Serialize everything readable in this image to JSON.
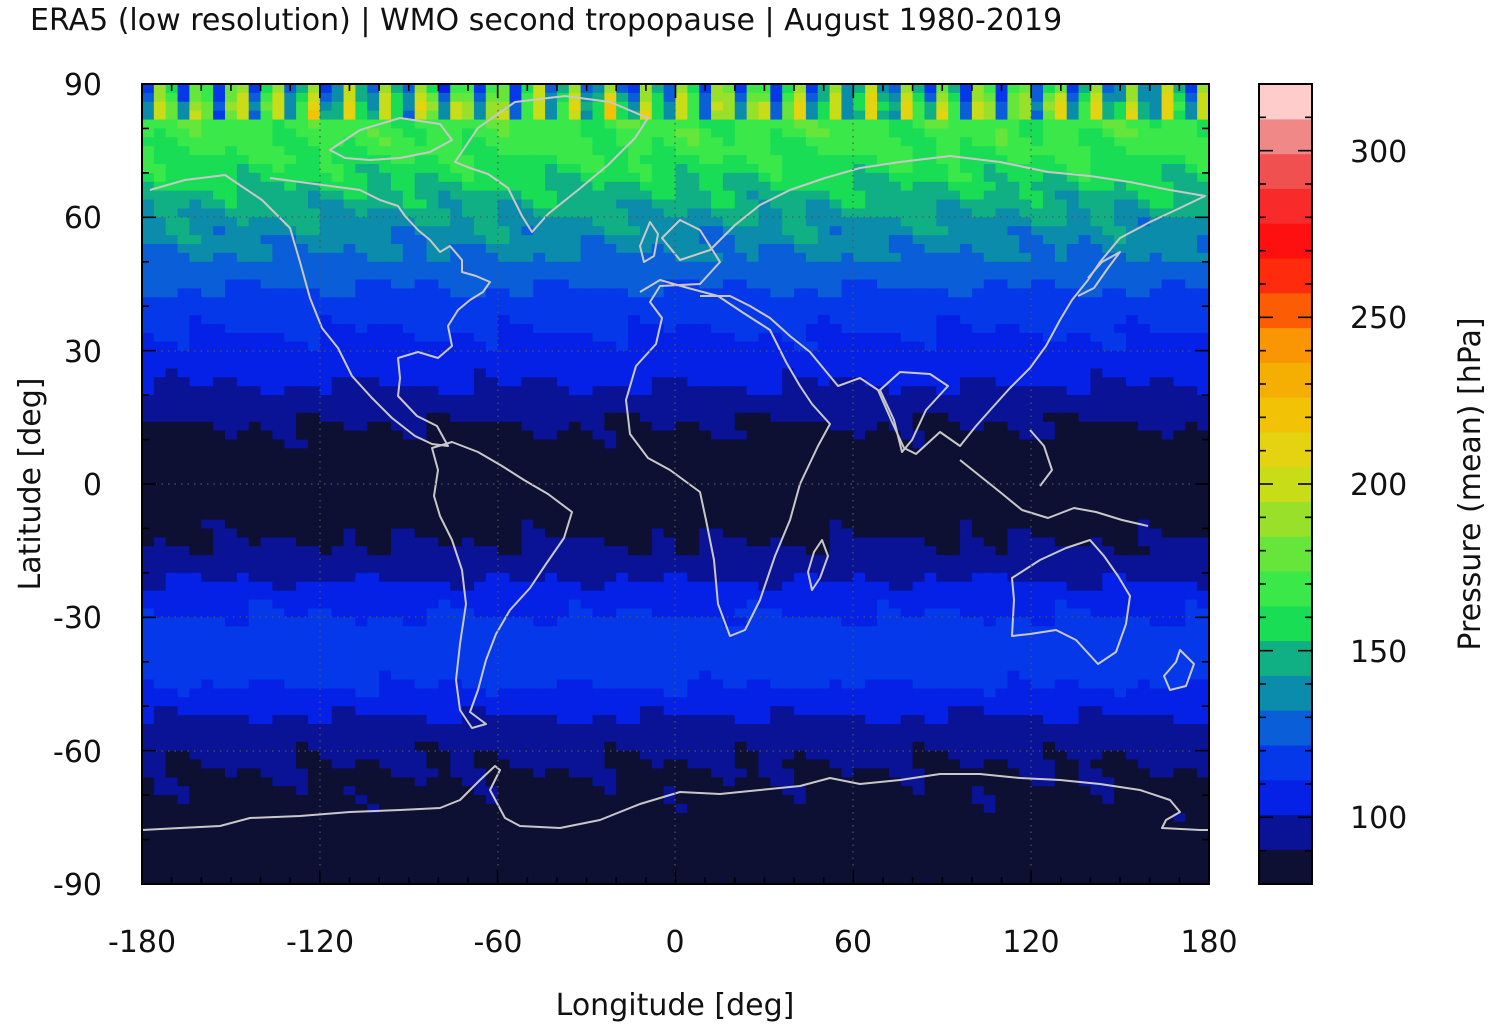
{
  "chart_data": {
    "type": "heatmap",
    "title": "ERA5 (low resolution) | WMO second tropopause | August 1980-2019",
    "xlabel": "Longitude [deg]",
    "ylabel": "Latitude [deg]",
    "xlim": [
      -180,
      180
    ],
    "ylim": [
      -90,
      90
    ],
    "x_ticks": [
      "-180",
      "-120",
      "-60",
      "0",
      "60",
      "120",
      "180"
    ],
    "y_ticks": [
      "90",
      "60",
      "30",
      "0",
      "-30",
      "-60",
      "-90"
    ],
    "grid": true,
    "colorbar": {
      "label": "Pressure (mean) [hPa]",
      "range": [
        80,
        320
      ],
      "ticks": [
        "100",
        "150",
        "200",
        "250",
        "300"
      ],
      "colors": [
        "#0d0f33",
        "#0a1296",
        "#0521e6",
        "#0538e8",
        "#0a5ed8",
        "#0b8caa",
        "#10b084",
        "#19dd55",
        "#3ae84a",
        "#66e63a",
        "#99e02a",
        "#c9dc18",
        "#e5d210",
        "#f1c206",
        "#f5ae02",
        "#fa9603",
        "#fc5d04",
        "#ff2b0c",
        "#ff1010",
        "#f82a2a",
        "#f05050",
        "#f08888",
        "#ffcccc"
      ]
    },
    "zonal_mean_profile": {
      "latitude": [
        -90,
        -80,
        -70,
        -65,
        -60,
        -55,
        -50,
        -45,
        -40,
        -35,
        -30,
        -25,
        -20,
        -15,
        -10,
        -5,
        0,
        5,
        10,
        15,
        20,
        25,
        30,
        35,
        40,
        45,
        50,
        55,
        60,
        65,
        70,
        75,
        80,
        85,
        90
      ],
      "pressure_hPa": [
        85,
        86,
        88,
        90,
        92,
        97,
        104,
        112,
        118,
        117,
        112,
        106,
        98,
        92,
        88,
        86,
        85,
        86,
        88,
        92,
        98,
        104,
        108,
        112,
        117,
        123,
        130,
        136,
        142,
        150,
        158,
        165,
        168,
        170,
        150
      ]
    }
  }
}
